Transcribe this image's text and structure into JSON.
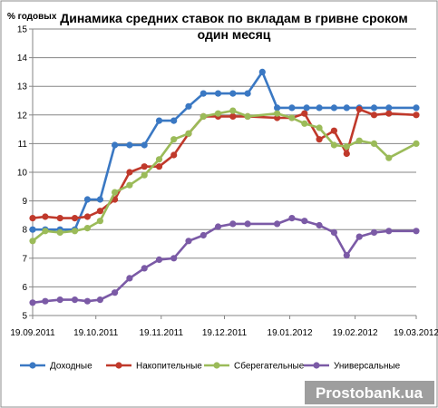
{
  "chart_data": {
    "type": "line",
    "title_line1": "Динамика средних ставок по вкладам в гривне сроком",
    "title_line2": "один месяц",
    "y_unit": "% годовых",
    "ylim": [
      5,
      15
    ],
    "y_ticks": [
      5,
      6,
      7,
      8,
      9,
      10,
      11,
      12,
      13,
      14,
      15
    ],
    "x_start": "2011-09-19",
    "x_end": "2012-03-19",
    "x_ticks": [
      {
        "date": "2011-09-19",
        "label": "19.09.2011"
      },
      {
        "date": "2011-10-19",
        "label": "19.10.2011"
      },
      {
        "date": "2011-11-19",
        "label": "19.11.2011"
      },
      {
        "date": "2011-12-19",
        "label": "19.12.2011"
      },
      {
        "date": "2012-01-19",
        "label": "19.01.2012"
      },
      {
        "date": "2012-02-19",
        "label": "19.02.2012"
      },
      {
        "date": "2012-03-19",
        "label": "19.03.2012"
      }
    ],
    "grid": "horizontal",
    "legend_position": "bottom",
    "series": [
      {
        "name": "Доходные",
        "color": "#3a78c3",
        "x": [
          "2011-09-19",
          "2011-09-25",
          "2011-10-02",
          "2011-10-09",
          "2011-10-15",
          "2011-10-21",
          "2011-10-28",
          "2011-11-04",
          "2011-11-11",
          "2011-11-18",
          "2011-11-25",
          "2011-12-02",
          "2011-12-09",
          "2011-12-16",
          "2011-12-23",
          "2011-12-30",
          "2012-01-06",
          "2012-01-13",
          "2012-01-20",
          "2012-01-27",
          "2012-02-02",
          "2012-02-09",
          "2012-02-15",
          "2012-02-21",
          "2012-02-28",
          "2012-03-06",
          "2012-03-19"
        ],
        "values": [
          8.0,
          8.0,
          8.0,
          8.0,
          9.05,
          9.05,
          10.95,
          10.95,
          10.95,
          11.8,
          11.8,
          12.3,
          12.75,
          12.75,
          12.75,
          12.75,
          13.5,
          12.25,
          12.25,
          12.25,
          12.25,
          12.25,
          12.25,
          12.25,
          12.25,
          12.25,
          12.25
        ]
      },
      {
        "name": "Накопительные",
        "color": "#c0392b",
        "x": [
          "2011-09-19",
          "2011-09-25",
          "2011-10-02",
          "2011-10-09",
          "2011-10-15",
          "2011-10-21",
          "2011-10-28",
          "2011-11-04",
          "2011-11-11",
          "2011-11-18",
          "2011-11-25",
          "2011-12-02",
          "2011-12-09",
          "2011-12-16",
          "2011-12-23",
          "2011-12-30",
          "2012-01-13",
          "2012-01-20",
          "2012-01-26",
          "2012-02-02",
          "2012-02-09",
          "2012-02-15",
          "2012-02-21",
          "2012-02-28",
          "2012-03-06",
          "2012-03-19"
        ],
        "values": [
          8.4,
          8.45,
          8.4,
          8.4,
          8.45,
          8.65,
          9.05,
          10.0,
          10.2,
          10.2,
          10.6,
          11.35,
          11.95,
          11.95,
          11.95,
          11.95,
          11.9,
          11.9,
          12.05,
          11.15,
          11.45,
          10.65,
          12.2,
          12.0,
          12.05,
          12.0
        ]
      },
      {
        "name": "Сберегательные",
        "color": "#9bbb59",
        "x": [
          "2011-09-19",
          "2011-09-25",
          "2011-10-02",
          "2011-10-09",
          "2011-10-15",
          "2011-10-21",
          "2011-10-28",
          "2011-11-04",
          "2011-11-11",
          "2011-11-18",
          "2011-11-25",
          "2011-12-02",
          "2011-12-09",
          "2011-12-16",
          "2011-12-23",
          "2011-12-30",
          "2012-01-13",
          "2012-01-20",
          "2012-01-26",
          "2012-02-02",
          "2012-02-09",
          "2012-02-15",
          "2012-02-21",
          "2012-02-28",
          "2012-03-06",
          "2012-03-19"
        ],
        "values": [
          7.6,
          7.95,
          7.9,
          7.95,
          8.05,
          8.3,
          9.3,
          9.55,
          9.9,
          10.45,
          11.15,
          11.35,
          11.95,
          12.05,
          12.15,
          11.95,
          12.05,
          11.9,
          11.7,
          11.55,
          10.95,
          10.9,
          11.1,
          11.0,
          10.5,
          11.0
        ]
      },
      {
        "name": "Универсальные",
        "color": "#7b5aa6",
        "x": [
          "2011-09-19",
          "2011-09-25",
          "2011-10-02",
          "2011-10-09",
          "2011-10-15",
          "2011-10-21",
          "2011-10-28",
          "2011-11-04",
          "2011-11-11",
          "2011-11-18",
          "2011-11-25",
          "2011-12-02",
          "2011-12-09",
          "2011-12-16",
          "2011-12-23",
          "2011-12-30",
          "2012-01-13",
          "2012-01-20",
          "2012-01-26",
          "2012-02-02",
          "2012-02-09",
          "2012-02-15",
          "2012-02-21",
          "2012-02-28",
          "2012-03-06",
          "2012-03-19"
        ],
        "values": [
          5.45,
          5.5,
          5.55,
          5.55,
          5.5,
          5.55,
          5.8,
          6.3,
          6.65,
          6.95,
          7.0,
          7.6,
          7.8,
          8.1,
          8.2,
          8.2,
          8.2,
          8.4,
          8.3,
          8.15,
          7.9,
          7.1,
          7.75,
          7.9,
          7.95,
          7.95
        ]
      }
    ]
  },
  "watermark": "Prostobank.ua"
}
